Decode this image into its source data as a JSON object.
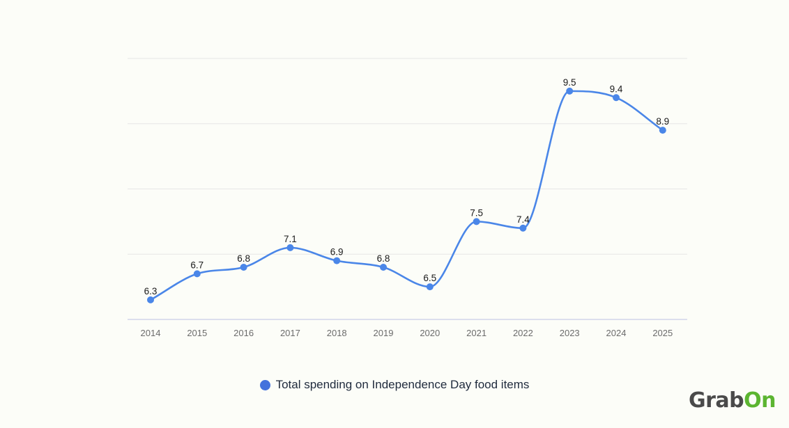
{
  "colors": {
    "series": "#4a86e8",
    "legend_swatch": "#4472dc",
    "brand_dark": "#4a4a4a",
    "brand_green": "#5cb531"
  },
  "chart_data": {
    "type": "line",
    "categories": [
      "2014",
      "2015",
      "2016",
      "2017",
      "2018",
      "2019",
      "2020",
      "2021",
      "2022",
      "2023",
      "2024",
      "2025"
    ],
    "series": [
      {
        "name": "Total spending on Independence Day food items",
        "values": [
          6.3,
          6.7,
          6.8,
          7.1,
          6.9,
          6.8,
          6.5,
          7.5,
          7.4,
          9.5,
          9.4,
          8.9
        ],
        "labels": [
          "6.3",
          "6.7",
          "6.8",
          "7.1",
          "6.9",
          "6.8",
          "6.5",
          "7.5",
          "7.4",
          "9.5",
          "9.4",
          "8.9"
        ]
      }
    ],
    "title": "",
    "xlabel": "",
    "ylabel": "",
    "ylim": [
      6.0,
      10.0
    ],
    "gridlines": [
      6.0,
      7.0,
      8.0,
      9.0,
      10.0
    ],
    "grid": true,
    "smooth": true,
    "y_tick_labels_visible": false,
    "legend_position": "bottom-center"
  },
  "legend": {
    "label": "Total spending on Independence Day food items"
  },
  "brand": {
    "part1": "Grab",
    "part2": "On"
  }
}
